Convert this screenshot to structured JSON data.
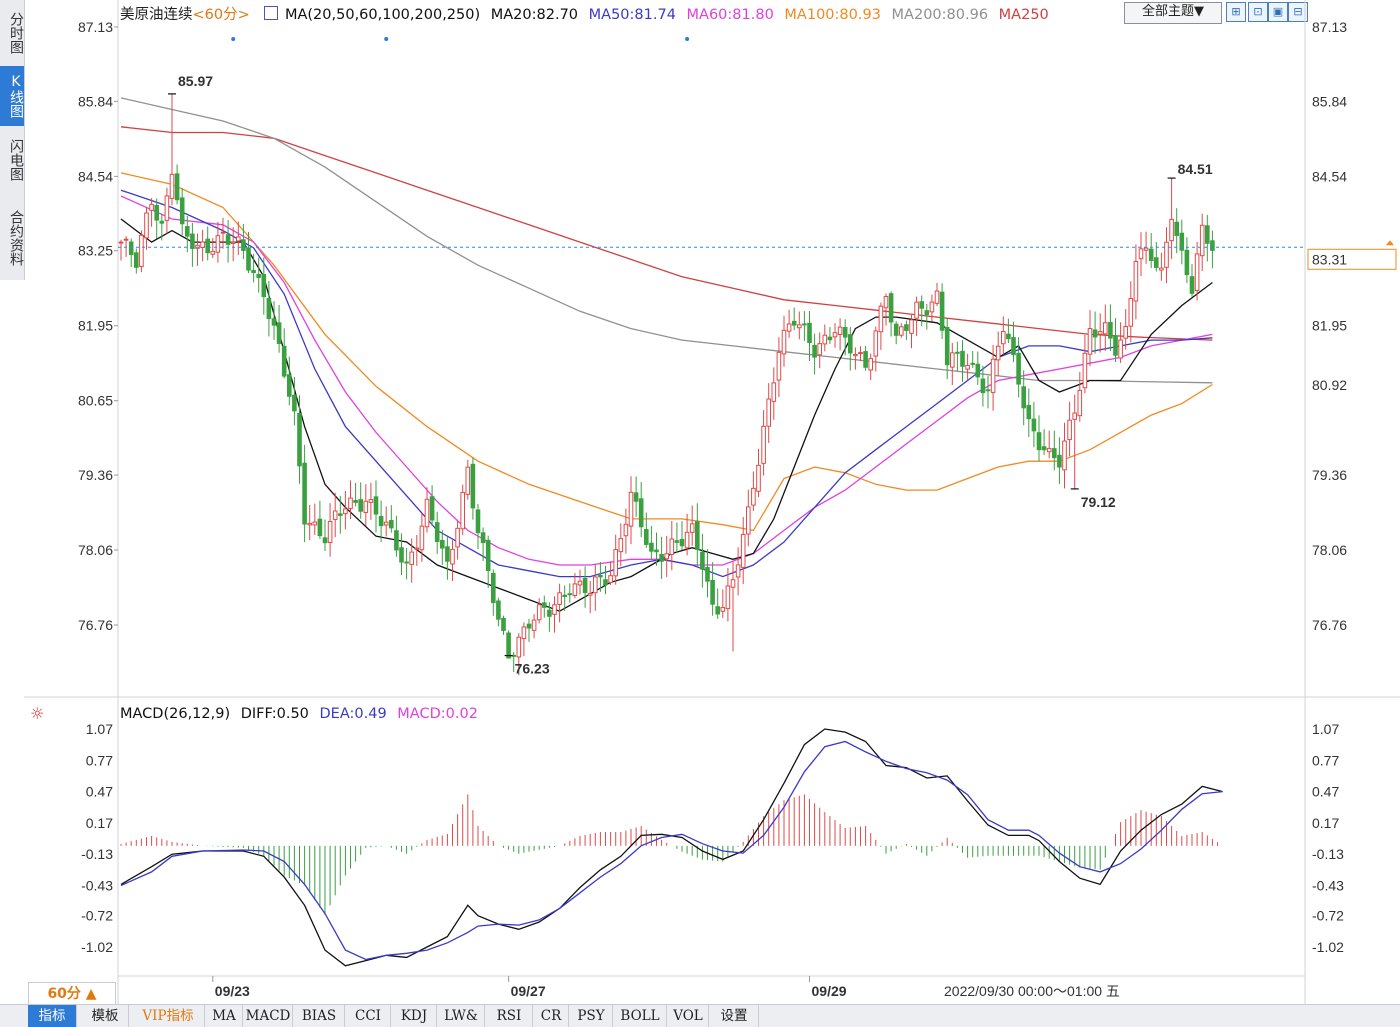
{
  "sidebar": {
    "tabs": [
      "分时图",
      "K线图",
      "闪电图",
      "合约资料"
    ],
    "active": 1
  },
  "header": {
    "symbol": "美原油连续",
    "period_tag": "<60分>",
    "ma_label": "MA(20,50,60,100,200,250)",
    "ma20": "MA20:82.70",
    "ma50": "MA50:81.74",
    "ma60": "MA60:81.80",
    "ma100": "MA100:80.93",
    "ma200": "MA200:80.96",
    "ma250": "MA250"
  },
  "theme_button": "全部主题▼",
  "icons": [
    "zoom-fit-icon",
    "zoom-in-icon",
    "zoom-out-icon",
    "zoom-reset-icon"
  ],
  "colors": {
    "up": "#e04a4a",
    "down": "#3aa040",
    "ma20": "#111111",
    "ma50": "#3a3ac8",
    "ma60": "#e040e0",
    "ma100": "#f08a20",
    "ma200": "#909090",
    "ma250": "#d04040",
    "diff": "#111111",
    "dea": "#3a3ac8",
    "current_line": "#2e8be0",
    "label_red": "#d03030",
    "label_green": "#3a9a40"
  },
  "price_ticks": [
    "87.13",
    "85.84",
    "84.54",
    "83.25",
    "81.95",
    "80.65",
    "79.36",
    "78.06",
    "76.76"
  ],
  "right_price_ticks": [
    "87.13",
    "85.84",
    "84.54",
    "81.95",
    "79.36",
    "78.06",
    "76.76"
  ],
  "current_price": "83.31",
  "ma100_right": "80.92",
  "extremes": {
    "high1": "85.97",
    "low1": "76.23",
    "low2": "79.12",
    "high2": "84.51"
  },
  "macd": {
    "label": "MACD(26,12,9)",
    "diff": "DIFF:0.50",
    "dea": "DEA:0.49",
    "macd": "MACD:0.02",
    "ticks": [
      "1.07",
      "0.77",
      "0.47",
      "0.17",
      "-0.13",
      "-0.43",
      "-0.72",
      "-1.02"
    ]
  },
  "x_labels": [
    "09/23",
    "09/27",
    "09/29"
  ],
  "crosshair_time": "2022/09/30 00:00～01:00 五",
  "period_button": "60分 ▲",
  "bottom_tabs": [
    "指标",
    "模板",
    "VIP指标",
    "MA",
    "MACD",
    "BIAS",
    "CCI",
    "KDJ",
    "LW&",
    "RSI",
    "CR",
    "PSY",
    "BOLL",
    "VOL",
    "设置"
  ],
  "chart_data": {
    "type": "candlestick",
    "title": "美原油连续",
    "period": "60分",
    "ylim": [
      75.9,
      87.13
    ],
    "anchors": [
      [
        0,
        83.4
      ],
      [
        3,
        83.0
      ],
      [
        6,
        84.2
      ],
      [
        8,
        83.7
      ],
      [
        10,
        84.7
      ],
      [
        12,
        83.5
      ],
      [
        15,
        83.3
      ],
      [
        20,
        83.5
      ],
      [
        24,
        83.2
      ],
      [
        28,
        82.6
      ],
      [
        31,
        81.5
      ],
      [
        34,
        80.3
      ],
      [
        36,
        78.7
      ],
      [
        40,
        78.3
      ],
      [
        44,
        78.8
      ],
      [
        48,
        79.0
      ],
      [
        52,
        78.4
      ],
      [
        56,
        77.8
      ],
      [
        60,
        78.8
      ],
      [
        64,
        77.7
      ],
      [
        68,
        79.5
      ],
      [
        70,
        78.4
      ],
      [
        74,
        76.8
      ],
      [
        76,
        76.3
      ],
      [
        80,
        76.8
      ],
      [
        84,
        77.0
      ],
      [
        88,
        77.5
      ],
      [
        92,
        77.3
      ],
      [
        96,
        77.7
      ],
      [
        100,
        79.0
      ],
      [
        104,
        77.9
      ],
      [
        108,
        78.2
      ],
      [
        112,
        78.3
      ],
      [
        114,
        77.8
      ],
      [
        116,
        77.1
      ],
      [
        118,
        77.2
      ],
      [
        120,
        77.5
      ],
      [
        123,
        78.6
      ],
      [
        126,
        80.2
      ],
      [
        129,
        81.6
      ],
      [
        132,
        82.0
      ],
      [
        136,
        81.6
      ],
      [
        140,
        81.9
      ],
      [
        142,
        81.6
      ],
      [
        146,
        81.3
      ],
      [
        150,
        82.5
      ],
      [
        152,
        81.6
      ],
      [
        156,
        82.3
      ],
      [
        160,
        82.4
      ],
      [
        162,
        81.3
      ],
      [
        166,
        81.4
      ],
      [
        170,
        80.8
      ],
      [
        173,
        81.9
      ],
      [
        176,
        81.1
      ],
      [
        178,
        80.3
      ],
      [
        180,
        79.9
      ],
      [
        182,
        79.6
      ],
      [
        184,
        79.6
      ],
      [
        187,
        80.6
      ],
      [
        190,
        81.8
      ],
      [
        193,
        81.8
      ],
      [
        195,
        81.6
      ],
      [
        197,
        81.9
      ],
      [
        199,
        83.2
      ],
      [
        202,
        83.1
      ],
      [
        204,
        82.8
      ],
      [
        206,
        84.0
      ],
      [
        208,
        83.2
      ],
      [
        210,
        82.6
      ],
      [
        212,
        83.5
      ],
      [
        214,
        83.31
      ]
    ],
    "ma20": [
      [
        0,
        83.8
      ],
      [
        6,
        83.4
      ],
      [
        10,
        83.6
      ],
      [
        14,
        83.4
      ],
      [
        20,
        83.4
      ],
      [
        24,
        83.4
      ],
      [
        28,
        82.8
      ],
      [
        32,
        81.5
      ],
      [
        36,
        80.2
      ],
      [
        40,
        79.2
      ],
      [
        44,
        78.8
      ],
      [
        50,
        78.3
      ],
      [
        56,
        78.2
      ],
      [
        62,
        77.8
      ],
      [
        68,
        77.6
      ],
      [
        74,
        77.4
      ],
      [
        80,
        77.2
      ],
      [
        86,
        77.0
      ],
      [
        92,
        77.3
      ],
      [
        96,
        77.5
      ],
      [
        100,
        77.6
      ],
      [
        104,
        77.8
      ],
      [
        108,
        78.0
      ],
      [
        112,
        78.1
      ],
      [
        116,
        78.0
      ],
      [
        120,
        77.9
      ],
      [
        124,
        78.0
      ],
      [
        128,
        78.6
      ],
      [
        132,
        79.5
      ],
      [
        136,
        80.4
      ],
      [
        140,
        81.2
      ],
      [
        144,
        81.9
      ],
      [
        148,
        82.1
      ],
      [
        152,
        82.1
      ],
      [
        160,
        82.0
      ],
      [
        166,
        81.7
      ],
      [
        172,
        81.4
      ],
      [
        176,
        81.6
      ],
      [
        180,
        81.0
      ],
      [
        184,
        80.8
      ],
      [
        190,
        81.0
      ],
      [
        196,
        81.0
      ],
      [
        202,
        81.8
      ],
      [
        208,
        82.3
      ],
      [
        214,
        82.7
      ]
    ],
    "ma50": [
      [
        0,
        84.3
      ],
      [
        10,
        84.0
      ],
      [
        20,
        83.6
      ],
      [
        26,
        83.3
      ],
      [
        32,
        82.5
      ],
      [
        38,
        81.2
      ],
      [
        44,
        80.2
      ],
      [
        50,
        79.6
      ],
      [
        56,
        79.0
      ],
      [
        62,
        78.4
      ],
      [
        68,
        78.1
      ],
      [
        74,
        77.8
      ],
      [
        80,
        77.7
      ],
      [
        86,
        77.6
      ],
      [
        92,
        77.6
      ],
      [
        100,
        77.8
      ],
      [
        106,
        77.9
      ],
      [
        112,
        77.8
      ],
      [
        118,
        77.6
      ],
      [
        124,
        77.8
      ],
      [
        130,
        78.2
      ],
      [
        136,
        78.8
      ],
      [
        142,
        79.4
      ],
      [
        148,
        79.8
      ],
      [
        154,
        80.2
      ],
      [
        160,
        80.6
      ],
      [
        166,
        81.0
      ],
      [
        172,
        81.4
      ],
      [
        178,
        81.6
      ],
      [
        184,
        81.6
      ],
      [
        190,
        81.5
      ],
      [
        196,
        81.6
      ],
      [
        202,
        81.7
      ],
      [
        208,
        81.7
      ],
      [
        214,
        81.74
      ]
    ],
    "ma60": [
      [
        0,
        84.2
      ],
      [
        10,
        83.8
      ],
      [
        20,
        83.7
      ],
      [
        26,
        83.4
      ],
      [
        32,
        82.7
      ],
      [
        38,
        81.7
      ],
      [
        44,
        80.8
      ],
      [
        50,
        80.1
      ],
      [
        56,
        79.5
      ],
      [
        62,
        78.9
      ],
      [
        68,
        78.4
      ],
      [
        74,
        78.1
      ],
      [
        80,
        77.9
      ],
      [
        86,
        77.8
      ],
      [
        92,
        77.8
      ],
      [
        100,
        77.9
      ],
      [
        106,
        77.9
      ],
      [
        112,
        77.8
      ],
      [
        118,
        77.8
      ],
      [
        124,
        78.0
      ],
      [
        130,
        78.4
      ],
      [
        136,
        78.8
      ],
      [
        142,
        79.1
      ],
      [
        148,
        79.5
      ],
      [
        154,
        79.9
      ],
      [
        160,
        80.3
      ],
      [
        166,
        80.7
      ],
      [
        172,
        81.0
      ],
      [
        178,
        81.1
      ],
      [
        184,
        81.2
      ],
      [
        190,
        81.3
      ],
      [
        196,
        81.4
      ],
      [
        202,
        81.6
      ],
      [
        208,
        81.7
      ],
      [
        214,
        81.8
      ]
    ],
    "ma100": [
      [
        0,
        84.6
      ],
      [
        10,
        84.4
      ],
      [
        20,
        84.0
      ],
      [
        30,
        83.0
      ],
      [
        40,
        81.8
      ],
      [
        50,
        80.9
      ],
      [
        60,
        80.2
      ],
      [
        70,
        79.6
      ],
      [
        80,
        79.2
      ],
      [
        90,
        78.9
      ],
      [
        100,
        78.6
      ],
      [
        110,
        78.6
      ],
      [
        118,
        78.5
      ],
      [
        124,
        78.4
      ],
      [
        130,
        79.3
      ],
      [
        136,
        79.5
      ],
      [
        142,
        79.4
      ],
      [
        148,
        79.2
      ],
      [
        154,
        79.1
      ],
      [
        160,
        79.1
      ],
      [
        166,
        79.3
      ],
      [
        172,
        79.5
      ],
      [
        178,
        79.6
      ],
      [
        184,
        79.6
      ],
      [
        190,
        79.8
      ],
      [
        196,
        80.1
      ],
      [
        202,
        80.4
      ],
      [
        208,
        80.6
      ],
      [
        214,
        80.93
      ]
    ],
    "ma200": [
      [
        0,
        85.9
      ],
      [
        10,
        85.7
      ],
      [
        20,
        85.5
      ],
      [
        30,
        85.2
      ],
      [
        40,
        84.7
      ],
      [
        50,
        84.1
      ],
      [
        60,
        83.5
      ],
      [
        70,
        83.0
      ],
      [
        80,
        82.6
      ],
      [
        90,
        82.2
      ],
      [
        100,
        81.9
      ],
      [
        110,
        81.7
      ],
      [
        120,
        81.6
      ],
      [
        130,
        81.5
      ],
      [
        140,
        81.4
      ],
      [
        150,
        81.3
      ],
      [
        160,
        81.2
      ],
      [
        170,
        81.1
      ],
      [
        180,
        81.0
      ],
      [
        190,
        81.0
      ],
      [
        200,
        80.98
      ],
      [
        214,
        80.96
      ]
    ],
    "ma250": [
      [
        0,
        85.4
      ],
      [
        10,
        85.3
      ],
      [
        20,
        85.3
      ],
      [
        30,
        85.2
      ],
      [
        40,
        84.9
      ],
      [
        50,
        84.6
      ],
      [
        60,
        84.3
      ],
      [
        70,
        84.0
      ],
      [
        80,
        83.7
      ],
      [
        90,
        83.4
      ],
      [
        100,
        83.1
      ],
      [
        110,
        82.8
      ],
      [
        120,
        82.6
      ],
      [
        130,
        82.4
      ],
      [
        140,
        82.3
      ],
      [
        150,
        82.2
      ],
      [
        160,
        82.1
      ],
      [
        170,
        82.0
      ],
      [
        180,
        81.9
      ],
      [
        190,
        81.8
      ],
      [
        200,
        81.75
      ],
      [
        214,
        81.7
      ]
    ],
    "macd_range": [
      -1.25,
      1.07
    ],
    "diff_series": [
      [
        0,
        -0.42
      ],
      [
        6,
        -0.25
      ],
      [
        10,
        -0.13
      ],
      [
        16,
        -0.1
      ],
      [
        24,
        -0.1
      ],
      [
        28,
        -0.15
      ],
      [
        32,
        -0.35
      ],
      [
        36,
        -0.62
      ],
      [
        40,
        -1.05
      ],
      [
        44,
        -1.2
      ],
      [
        48,
        -1.15
      ],
      [
        52,
        -1.1
      ],
      [
        56,
        -1.12
      ],
      [
        60,
        -1.02
      ],
      [
        64,
        -0.92
      ],
      [
        68,
        -0.62
      ],
      [
        70,
        -0.72
      ],
      [
        74,
        -0.8
      ],
      [
        78,
        -0.85
      ],
      [
        82,
        -0.78
      ],
      [
        86,
        -0.65
      ],
      [
        90,
        -0.45
      ],
      [
        94,
        -0.28
      ],
      [
        98,
        -0.15
      ],
      [
        102,
        0.05
      ],
      [
        106,
        0.06
      ],
      [
        110,
        0.03
      ],
      [
        114,
        -0.1
      ],
      [
        118,
        -0.18
      ],
      [
        122,
        -0.1
      ],
      [
        126,
        0.2
      ],
      [
        130,
        0.55
      ],
      [
        134,
        0.92
      ],
      [
        138,
        1.07
      ],
      [
        142,
        1.04
      ],
      [
        146,
        0.95
      ],
      [
        150,
        0.72
      ],
      [
        154,
        0.7
      ],
      [
        158,
        0.6
      ],
      [
        162,
        0.62
      ],
      [
        166,
        0.38
      ],
      [
        170,
        0.15
      ],
      [
        174,
        0.05
      ],
      [
        178,
        0.05
      ],
      [
        180,
        0.0
      ],
      [
        184,
        -0.2
      ],
      [
        188,
        -0.36
      ],
      [
        192,
        -0.42
      ],
      [
        196,
        -0.1
      ],
      [
        200,
        0.1
      ],
      [
        204,
        0.25
      ],
      [
        208,
        0.35
      ],
      [
        212,
        0.52
      ],
      [
        216,
        0.47
      ]
    ],
    "dea_series": [
      [
        0,
        -0.43
      ],
      [
        6,
        -0.3
      ],
      [
        10,
        -0.15
      ],
      [
        16,
        -0.1
      ],
      [
        24,
        -0.09
      ],
      [
        28,
        -0.1
      ],
      [
        32,
        -0.2
      ],
      [
        36,
        -0.42
      ],
      [
        40,
        -0.7
      ],
      [
        44,
        -1.05
      ],
      [
        48,
        -1.14
      ],
      [
        52,
        -1.1
      ],
      [
        56,
        -1.08
      ],
      [
        60,
        -1.05
      ],
      [
        64,
        -0.98
      ],
      [
        68,
        -0.88
      ],
      [
        70,
        -0.82
      ],
      [
        74,
        -0.8
      ],
      [
        78,
        -0.81
      ],
      [
        82,
        -0.76
      ],
      [
        86,
        -0.65
      ],
      [
        90,
        -0.5
      ],
      [
        94,
        -0.35
      ],
      [
        98,
        -0.22
      ],
      [
        102,
        -0.05
      ],
      [
        106,
        0.03
      ],
      [
        110,
        0.06
      ],
      [
        114,
        -0.03
      ],
      [
        118,
        -0.1
      ],
      [
        122,
        -0.12
      ],
      [
        126,
        0.05
      ],
      [
        130,
        0.32
      ],
      [
        134,
        0.66
      ],
      [
        138,
        0.9
      ],
      [
        142,
        0.95
      ],
      [
        146,
        0.85
      ],
      [
        150,
        0.76
      ],
      [
        154,
        0.69
      ],
      [
        158,
        0.65
      ],
      [
        162,
        0.58
      ],
      [
        166,
        0.44
      ],
      [
        170,
        0.2
      ],
      [
        174,
        0.1
      ],
      [
        178,
        0.1
      ],
      [
        180,
        0.05
      ],
      [
        184,
        -0.12
      ],
      [
        188,
        -0.25
      ],
      [
        192,
        -0.3
      ],
      [
        196,
        -0.22
      ],
      [
        200,
        -0.08
      ],
      [
        204,
        0.1
      ],
      [
        208,
        0.3
      ],
      [
        212,
        0.45
      ],
      [
        216,
        0.47
      ]
    ]
  }
}
